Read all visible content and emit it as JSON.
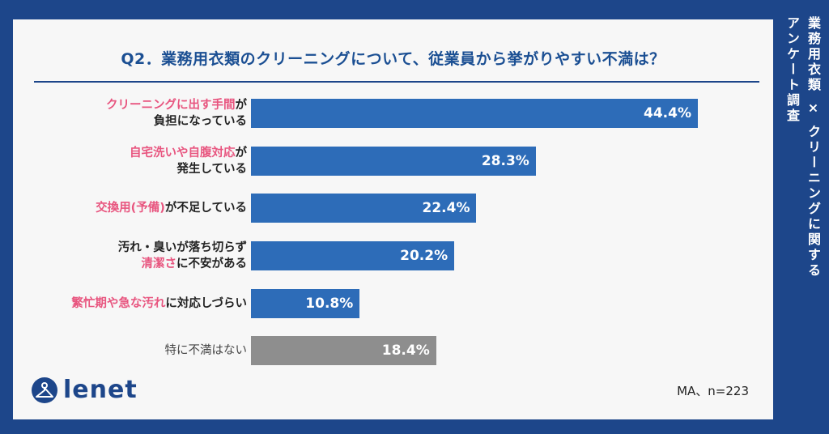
{
  "side_title": {
    "line1": "業務用衣類 × クリーニングに関する",
    "line2": "アンケート調査"
  },
  "brand": "lenet",
  "colors": {
    "bar": "#2d6cb8",
    "bar_none": "#8e8e8e",
    "highlight": "#e8557f",
    "navy": "#1d468a"
  },
  "chart_data": {
    "type": "bar",
    "orientation": "horizontal",
    "title": "Q2．業務用衣類のクリーニングについて、従業員から挙がりやすい不満は？",
    "note": "MA、n=223",
    "unit": "%",
    "xlim": [
      0,
      50
    ],
    "categories": [
      [
        [
          [
            "クリーニングに出す手間",
            true
          ],
          [
            "が",
            false
          ]
        ],
        [
          [
            "負担になっている",
            false
          ]
        ]
      ],
      [
        [
          [
            "自宅洗いや自腹対応",
            true
          ],
          [
            "が",
            false
          ]
        ],
        [
          [
            "発生している",
            false
          ]
        ]
      ],
      [
        [
          [
            "交換用(予備)",
            true
          ],
          [
            "が不足している",
            false
          ]
        ]
      ],
      [
        [
          [
            "汚れ・臭いが落ち切らず",
            false
          ]
        ],
        [
          [
            "清潔さ",
            true
          ],
          [
            "に不安がある",
            false
          ]
        ]
      ],
      [
        [
          [
            "繁忙期や急な汚れ",
            true
          ],
          [
            "に対応しづらい",
            false
          ]
        ]
      ],
      [
        [
          [
            "特に不満はない",
            false
          ]
        ]
      ]
    ],
    "values": [
      44.4,
      28.3,
      22.4,
      20.2,
      10.8,
      18.4
    ],
    "value_labels": [
      "44.4%",
      "28.3%",
      "22.4%",
      "20.2%",
      "10.8%",
      "18.4%"
    ],
    "gray_index": 5
  }
}
